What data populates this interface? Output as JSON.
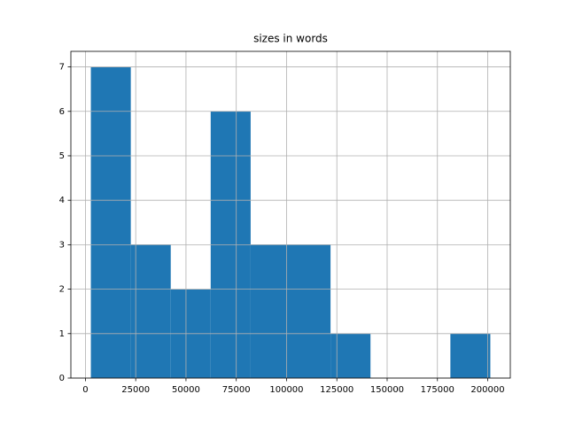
{
  "chart_data": {
    "type": "histogram",
    "title": "sizes in words",
    "bins": [
      2700,
      22560,
      42420,
      62280,
      82140,
      102000,
      121860,
      141720,
      161580,
      181440,
      201300
    ],
    "values": [
      7,
      3,
      2,
      6,
      3,
      3,
      1,
      0,
      0,
      1
    ],
    "color": "#1f77b4",
    "xlim": [
      -7230,
      211230
    ],
    "xticks": [
      0,
      25000,
      50000,
      75000,
      100000,
      125000,
      150000,
      175000,
      200000
    ],
    "ylim": [
      0,
      7.35
    ],
    "yticks": [
      0,
      1,
      2,
      3,
      4,
      5,
      6,
      7
    ],
    "grid": true
  }
}
